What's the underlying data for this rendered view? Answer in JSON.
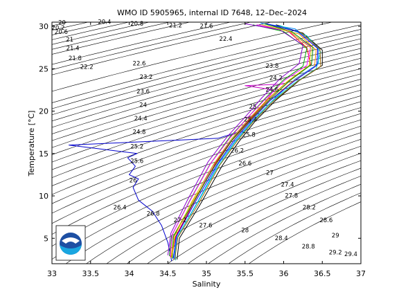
{
  "chart_data": {
    "type": "line",
    "title": "WMO ID 5905965, internal ID 7648, 12–Dec–2024",
    "xlabel": "Salinity",
    "ylabel": "Temperature [°C]",
    "xlim": [
      33,
      37
    ],
    "ylim": [
      2,
      30.5
    ],
    "xticks": [
      "33",
      "33.5",
      "34",
      "34.5",
      "35",
      "35.5",
      "36",
      "36.5",
      "37"
    ],
    "yticks": [
      "5",
      "10",
      "15",
      "20",
      "25",
      "30"
    ],
    "grid": false,
    "logo_text": "NOAA",
    "density_contours": [
      {
        "label": "20",
        "sigma": 20.0,
        "x": 33.13,
        "y": 30.4
      },
      {
        "label": "20.2",
        "sigma": 20.2,
        "x": 33.08,
        "y": 29.8
      },
      {
        "label": "20.4",
        "sigma": 20.4,
        "x": 33.68,
        "y": 30.5
      },
      {
        "label": "20.6",
        "sigma": 20.6,
        "x": 33.12,
        "y": 29.3
      },
      {
        "label": "20.8",
        "sigma": 20.8,
        "x": 34.1,
        "y": 30.3
      },
      {
        "label": "21",
        "sigma": 21.0,
        "x": 33.23,
        "y": 28.4
      },
      {
        "label": "21.2",
        "sigma": 21.2,
        "x": 34.6,
        "y": 30.1
      },
      {
        "label": "21.4",
        "sigma": 21.4,
        "x": 33.27,
        "y": 27.4
      },
      {
        "label": "21.6",
        "sigma": 21.6,
        "x": 35.0,
        "y": 30.0
      },
      {
        "label": "21.8",
        "sigma": 21.8,
        "x": 33.3,
        "y": 26.2
      },
      {
        "label": "22.2",
        "sigma": 22.2,
        "x": 33.45,
        "y": 25.2
      },
      {
        "label": "22.4",
        "sigma": 22.4,
        "x": 35.25,
        "y": 28.5
      },
      {
        "label": "22.6",
        "sigma": 22.6,
        "x": 34.13,
        "y": 25.6
      },
      {
        "label": "23.2",
        "sigma": 23.2,
        "x": 34.22,
        "y": 24.0
      },
      {
        "label": "23.6",
        "sigma": 23.6,
        "x": 34.18,
        "y": 22.3
      },
      {
        "label": "23.8",
        "sigma": 23.8,
        "x": 35.85,
        "y": 25.3
      },
      {
        "label": "24",
        "sigma": 24.0,
        "x": 34.18,
        "y": 20.7
      },
      {
        "label": "24.2",
        "sigma": 24.2,
        "x": 35.9,
        "y": 23.9
      },
      {
        "label": "24.4",
        "sigma": 24.4,
        "x": 34.15,
        "y": 19.1
      },
      {
        "label": "24.6",
        "sigma": 24.6,
        "x": 35.85,
        "y": 22.5
      },
      {
        "label": "24.8",
        "sigma": 24.8,
        "x": 34.13,
        "y": 17.5
      },
      {
        "label": "25",
        "sigma": 25.0,
        "x": 35.6,
        "y": 20.5
      },
      {
        "label": "25.2",
        "sigma": 25.2,
        "x": 34.1,
        "y": 15.8
      },
      {
        "label": "25.4",
        "sigma": 25.4,
        "x": 35.57,
        "y": 19.0
      },
      {
        "label": "25.6",
        "sigma": 25.6,
        "x": 34.1,
        "y": 14.1
      },
      {
        "label": "25.8",
        "sigma": 25.8,
        "x": 35.55,
        "y": 17.2
      },
      {
        "label": "26",
        "sigma": 26.0,
        "x": 34.05,
        "y": 11.8
      },
      {
        "label": "26.2",
        "sigma": 26.2,
        "x": 35.4,
        "y": 15.3
      },
      {
        "label": "26.4",
        "sigma": 26.4,
        "x": 33.88,
        "y": 8.6
      },
      {
        "label": "26.6",
        "sigma": 26.6,
        "x": 35.5,
        "y": 13.8
      },
      {
        "label": "26.8",
        "sigma": 26.8,
        "x": 34.31,
        "y": 7.9
      },
      {
        "label": "27",
        "sigma": 27.0,
        "x": 35.82,
        "y": 12.7
      },
      {
        "label": "27.2",
        "sigma": 27.2,
        "x": 34.66,
        "y": 7.1
      },
      {
        "label": "27.4",
        "sigma": 27.4,
        "x": 36.05,
        "y": 11.3
      },
      {
        "label": "27.6",
        "sigma": 27.6,
        "x": 34.99,
        "y": 6.5
      },
      {
        "label": "27.8",
        "sigma": 27.8,
        "x": 36.1,
        "y": 10.0
      },
      {
        "label": "28",
        "sigma": 28.0,
        "x": 35.5,
        "y": 5.9
      },
      {
        "label": "28.2",
        "sigma": 28.2,
        "x": 36.33,
        "y": 8.6
      },
      {
        "label": "28.4",
        "sigma": 28.4,
        "x": 35.97,
        "y": 5.0
      },
      {
        "label": "28.6",
        "sigma": 28.6,
        "x": 36.55,
        "y": 7.1
      },
      {
        "label": "28.8",
        "sigma": 28.8,
        "x": 36.32,
        "y": 4.0
      },
      {
        "label": "29",
        "sigma": 29.0,
        "x": 36.67,
        "y": 5.3
      },
      {
        "label": "29.2",
        "sigma": 29.2,
        "x": 36.67,
        "y": 3.3
      },
      {
        "label": "29.4",
        "sigma": 29.4,
        "x": 36.87,
        "y": 3.1
      }
    ],
    "series": [
      {
        "color": "#0000cc",
        "values": [
          [
            34.55,
            2.3
          ],
          [
            34.5,
            4.5
          ],
          [
            34.42,
            6.5
          ],
          [
            34.3,
            8.2
          ],
          [
            34.12,
            9.5
          ],
          [
            34.05,
            11.0
          ],
          [
            34.12,
            12.0
          ],
          [
            34.0,
            12.5
          ],
          [
            34.08,
            13.5
          ],
          [
            33.98,
            14.5
          ],
          [
            34.1,
            15.0
          ],
          [
            33.22,
            16.0
          ],
          [
            35.15,
            16.8
          ],
          [
            35.4,
            17.5
          ]
        ]
      },
      {
        "color": "#cc00cc",
        "values": [
          [
            34.6,
            2.5
          ],
          [
            34.6,
            5.0
          ],
          [
            34.82,
            9.0
          ],
          [
            35.08,
            13.5
          ],
          [
            35.3,
            16.3
          ],
          [
            35.5,
            18.5
          ],
          [
            35.75,
            21.0
          ],
          [
            35.88,
            22.5
          ],
          [
            35.5,
            23.0
          ],
          [
            36.0,
            23.2
          ]
        ]
      },
      {
        "color": "#ff0000",
        "values": [
          [
            34.55,
            2.8
          ],
          [
            34.6,
            5.2
          ],
          [
            34.84,
            9.3
          ],
          [
            35.12,
            13.9
          ],
          [
            35.35,
            16.8
          ],
          [
            35.56,
            19.0
          ],
          [
            35.8,
            21.4
          ],
          [
            36.05,
            23.5
          ],
          [
            36.35,
            25.5
          ],
          [
            36.3,
            27.5
          ],
          [
            36.05,
            29.5
          ],
          [
            35.7,
            30.1
          ]
        ]
      },
      {
        "color": "#00aa00",
        "values": [
          [
            34.52,
            2.9
          ],
          [
            34.55,
            5.3
          ],
          [
            34.78,
            9.4
          ],
          [
            35.05,
            13.8
          ],
          [
            35.3,
            16.9
          ],
          [
            35.52,
            19.1
          ],
          [
            35.76,
            21.5
          ],
          [
            36.0,
            23.7
          ],
          [
            36.25,
            25.3
          ],
          [
            36.3,
            27.4
          ],
          [
            36.0,
            29.4
          ],
          [
            35.6,
            30.2
          ]
        ]
      },
      {
        "color": "#0088ff",
        "values": [
          [
            34.58,
            2.6
          ],
          [
            34.62,
            5.1
          ],
          [
            34.88,
            9.2
          ],
          [
            35.15,
            13.7
          ],
          [
            35.38,
            16.6
          ],
          [
            35.6,
            18.9
          ],
          [
            35.85,
            21.2
          ],
          [
            36.15,
            23.8
          ],
          [
            36.45,
            25.6
          ],
          [
            36.45,
            27.6
          ],
          [
            36.15,
            29.7
          ],
          [
            35.7,
            30.4
          ]
        ]
      },
      {
        "color": "#ff8800",
        "values": [
          [
            34.54,
            2.7
          ],
          [
            34.58,
            5.4
          ],
          [
            34.8,
            9.0
          ],
          [
            35.1,
            13.4
          ],
          [
            35.33,
            16.5
          ],
          [
            35.55,
            18.7
          ],
          [
            35.8,
            21.1
          ],
          [
            36.1,
            23.4
          ],
          [
            36.4,
            25.2
          ],
          [
            36.42,
            27.2
          ],
          [
            36.2,
            29.1
          ],
          [
            35.8,
            30.0
          ]
        ]
      },
      {
        "color": "#000000",
        "values": [
          [
            34.62,
            2.5
          ],
          [
            34.65,
            5.0
          ],
          [
            34.92,
            9.0
          ],
          [
            35.2,
            13.5
          ],
          [
            35.42,
            16.4
          ],
          [
            35.63,
            18.8
          ],
          [
            35.9,
            21.3
          ],
          [
            36.2,
            23.6
          ],
          [
            36.5,
            25.4
          ],
          [
            36.5,
            27.2
          ],
          [
            36.25,
            29.2
          ],
          [
            35.9,
            30.2
          ]
        ]
      },
      {
        "color": "#8800cc",
        "values": [
          [
            34.5,
            3.0
          ],
          [
            34.54,
            5.6
          ],
          [
            34.76,
            9.6
          ],
          [
            35.02,
            14.0
          ],
          [
            35.27,
            17.0
          ],
          [
            35.5,
            19.3
          ],
          [
            35.72,
            21.6
          ],
          [
            35.95,
            23.8
          ],
          [
            36.2,
            25.6
          ],
          [
            36.25,
            27.8
          ],
          [
            35.95,
            29.6
          ],
          [
            35.5,
            30.3
          ]
        ]
      },
      {
        "color": "#00cccc",
        "values": [
          [
            34.6,
            2.4
          ],
          [
            34.6,
            4.8
          ],
          [
            34.86,
            8.8
          ],
          [
            35.14,
            13.3
          ],
          [
            35.36,
            16.2
          ],
          [
            35.58,
            18.6
          ],
          [
            35.83,
            21.0
          ],
          [
            36.12,
            23.2
          ],
          [
            36.42,
            25.0
          ],
          [
            36.48,
            27.0
          ],
          [
            36.3,
            28.9
          ],
          [
            35.95,
            30.1
          ]
        ]
      },
      {
        "color": "#008800",
        "values": [
          [
            34.56,
            2.6
          ],
          [
            34.57,
            5.2
          ],
          [
            34.83,
            9.2
          ],
          [
            35.11,
            13.6
          ],
          [
            35.34,
            16.7
          ],
          [
            35.57,
            19.0
          ],
          [
            35.81,
            21.3
          ],
          [
            36.08,
            23.6
          ],
          [
            36.36,
            25.5
          ],
          [
            36.38,
            27.5
          ],
          [
            36.1,
            29.4
          ],
          [
            35.75,
            30.3
          ]
        ]
      },
      {
        "color": "#ff00ff",
        "values": [
          [
            34.53,
            2.8
          ],
          [
            34.56,
            5.5
          ],
          [
            34.79,
            9.5
          ],
          [
            35.06,
            13.9
          ],
          [
            35.31,
            16.9
          ],
          [
            35.53,
            19.2
          ],
          [
            35.77,
            21.5
          ],
          [
            36.02,
            23.7
          ],
          [
            36.3,
            25.4
          ],
          [
            36.35,
            27.6
          ],
          [
            36.05,
            29.5
          ],
          [
            35.65,
            30.2
          ]
        ]
      },
      {
        "color": "#996600",
        "values": [
          [
            34.59,
            2.5
          ],
          [
            34.63,
            5.1
          ],
          [
            34.9,
            9.1
          ],
          [
            35.17,
            13.6
          ],
          [
            35.4,
            16.5
          ],
          [
            35.61,
            18.8
          ],
          [
            35.87,
            21.2
          ],
          [
            36.18,
            23.5
          ],
          [
            36.48,
            25.3
          ],
          [
            36.47,
            27.3
          ],
          [
            36.22,
            29.3
          ],
          [
            35.85,
            30.1
          ]
        ]
      },
      {
        "color": "#cccc00",
        "values": [
          [
            34.55,
            2.7
          ],
          [
            34.59,
            5.3
          ],
          [
            34.81,
            9.3
          ],
          [
            35.09,
            13.7
          ],
          [
            35.32,
            16.7
          ],
          [
            35.54,
            19.0
          ],
          [
            35.79,
            21.4
          ],
          [
            36.06,
            23.6
          ],
          [
            36.33,
            25.4
          ],
          [
            36.36,
            27.4
          ],
          [
            36.08,
            29.4
          ],
          [
            35.72,
            30.2
          ]
        ]
      },
      {
        "color": "#0000ff",
        "values": [
          [
            34.57,
            2.6
          ],
          [
            34.61,
            5.2
          ],
          [
            34.85,
            9.2
          ],
          [
            35.13,
            13.6
          ],
          [
            35.36,
            16.6
          ],
          [
            35.58,
            18.9
          ],
          [
            35.83,
            21.3
          ],
          [
            36.13,
            23.5
          ],
          [
            36.43,
            25.4
          ],
          [
            36.44,
            27.4
          ],
          [
            36.18,
            29.4
          ],
          [
            35.78,
            30.3
          ]
        ]
      }
    ]
  }
}
